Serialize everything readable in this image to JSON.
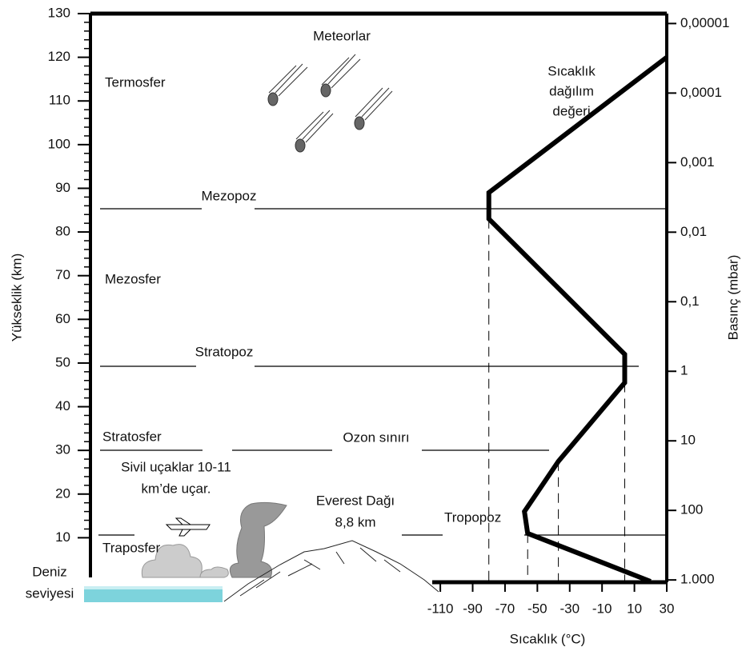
{
  "chart_data": {
    "type": "line",
    "x_label": "Sıcaklık (°C)",
    "y_label": "Yükseklik (km)",
    "y2_label": "Basınç (mbar)",
    "xlim": [
      -115,
      30
    ],
    "xticks": [
      -110,
      -90,
      -70,
      -50,
      -30,
      -10,
      10,
      30
    ],
    "ylim": [
      0,
      130
    ],
    "yticks": [
      10,
      20,
      30,
      40,
      50,
      60,
      70,
      80,
      90,
      100,
      110,
      120,
      130
    ],
    "y2lim": [
      1050,
      7.2e-06
    ],
    "y2scale": "log",
    "y2ticks": [
      {
        "value": 1e-05,
        "label": "0,00001"
      },
      {
        "value": 0.0001,
        "label": "0,0001"
      },
      {
        "value": 0.001,
        "label": "0,001"
      },
      {
        "value": 0.01,
        "label": "0,01"
      },
      {
        "value": 0.1,
        "label": "0,1"
      },
      1,
      10,
      100,
      {
        "value": 1000,
        "label": "1.000"
      }
    ],
    "series": [
      {
        "color": "#000000",
        "x": [
          20,
          -56,
          -58,
          -37,
          4,
          4,
          -80,
          -80,
          30
        ],
        "values": [
          0,
          11,
          16,
          27.5,
          45.5,
          52,
          83,
          89,
          120
        ]
      }
    ],
    "annotations": {
      "curve": [
        "Sıcaklık",
        "dağılım",
        "değeri"
      ],
      "meteors": "Meteorlar",
      "thermosphere": "Termosfer",
      "mesopause": "Mezopoz",
      "mesosphere": "Mezosfer",
      "stratopause": "Stratopoz",
      "stratosphere": "Stratosfer",
      "ozone": "Ozon sınırı",
      "planes": [
        "Sivil uçaklar 10-11",
        "km’de uçar."
      ],
      "everest": [
        "Everest Dağı",
        "8,8 km"
      ],
      "tropopause": "Tropopoz",
      "troposphere": "Traposfer",
      "sea_level": [
        "Deniz",
        "seviyesi"
      ]
    }
  }
}
